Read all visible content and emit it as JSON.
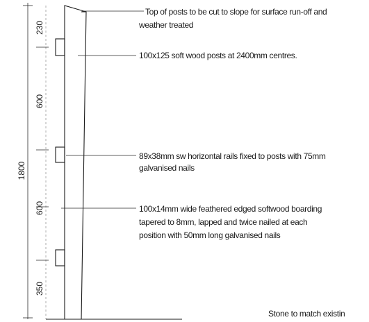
{
  "colors": {
    "ink": "#1a1a1a",
    "faint": "#9a9a9a",
    "background": "#ffffff"
  },
  "dimensions": {
    "top": "230",
    "middle_upper": "600",
    "overall": "1800",
    "middle_lower": "600",
    "bottom": "350"
  },
  "notes": {
    "post_top": {
      "line1": "Top of posts to be cut to slope for surface run-off and",
      "line2": "weather treated"
    },
    "posts": {
      "line1": "100x125 soft wood posts at 2400mm centres."
    },
    "rails": {
      "line1": "89x38mm sw horizontal rails fixed to posts with 75mm",
      "line2": "galvanised nails"
    },
    "boarding": {
      "line1": "100x14mm wide feathered edged softwood boarding",
      "line2": "tapered to 8mm, lapped and twice nailed at each",
      "line3": "position with 50mm long galvanised nails"
    },
    "stone": {
      "line1": "Stone to match existin"
    }
  }
}
